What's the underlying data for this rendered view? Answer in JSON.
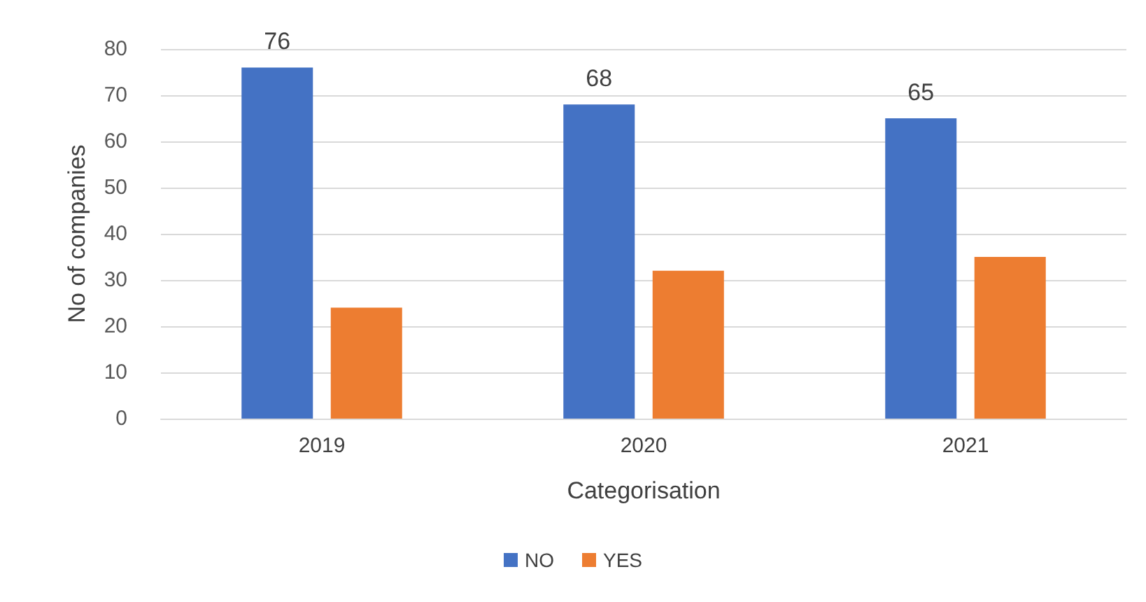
{
  "chart_data": {
    "type": "bar",
    "xlabel": "Categorisation",
    "ylabel": "No of companies",
    "categories": [
      "2019",
      "2020",
      "2021"
    ],
    "series": [
      {
        "name": "NO",
        "color": "#4472c4",
        "values": [
          76,
          68,
          65
        ],
        "value_labels": [
          "76",
          "68",
          "65"
        ]
      },
      {
        "name": "YES",
        "color": "#ed7d31",
        "values": [
          24,
          32,
          35
        ]
      }
    ],
    "ylim": [
      0,
      80
    ],
    "yticks": [
      0,
      10,
      20,
      30,
      40,
      50,
      60,
      70,
      80
    ],
    "grid": "y",
    "legend": "bottom"
  }
}
